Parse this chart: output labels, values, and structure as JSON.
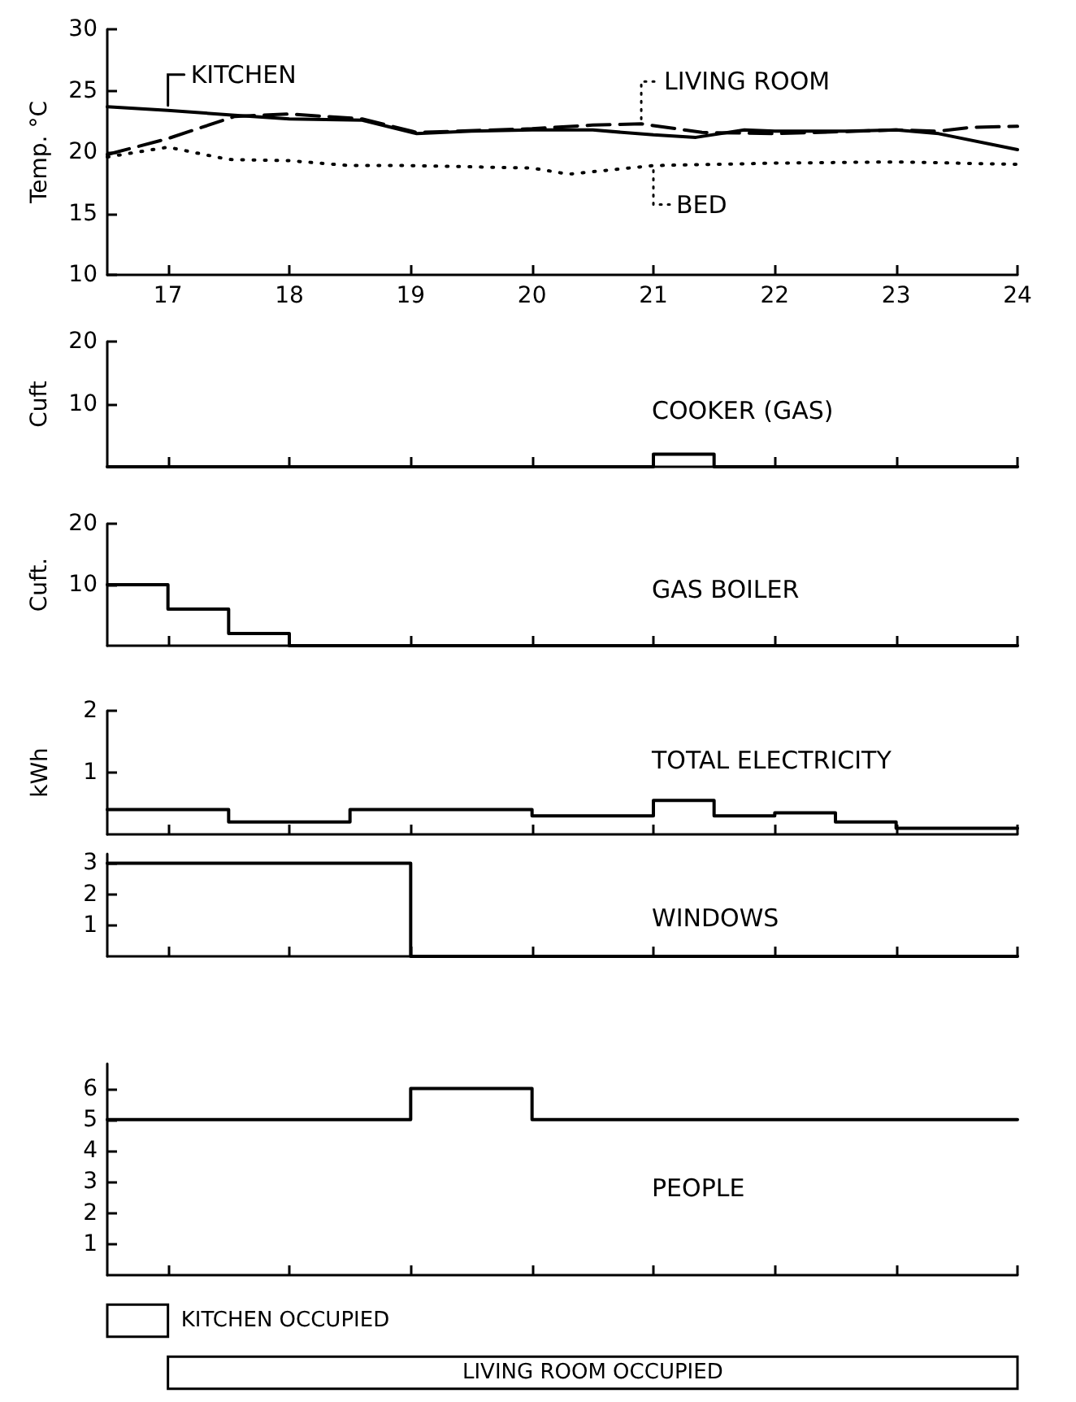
{
  "chart_data": [
    {
      "type": "line",
      "ylabel": "Temp. °C",
      "marker": "none",
      "legend": "top",
      "xlim": [
        16.5,
        24
      ],
      "xticks": [
        17,
        18,
        19,
        20,
        21,
        22,
        23,
        24
      ],
      "ylim": [
        10,
        30
      ],
      "yticks": [
        10,
        15,
        20,
        25,
        30
      ],
      "series": [
        {
          "name": "KITCHEN",
          "color": "#000000",
          "line_style": "solid",
          "x": [
            16.5,
            17,
            17.55,
            18,
            18.6,
            19.05,
            19.5,
            20,
            20.5,
            21,
            21.35,
            21.75,
            22,
            22.6,
            23,
            23.35,
            24
          ],
          "values": [
            23.7,
            23.4,
            23.0,
            22.7,
            22.6,
            21.5,
            21.7,
            21.8,
            21.8,
            21.4,
            21.2,
            21.8,
            21.7,
            21.7,
            21.8,
            21.5,
            20.2
          ]
        },
        {
          "name": "LIVING ROOM",
          "color": "#000000",
          "line_style": "dashed",
          "x": [
            16.5,
            17,
            17.55,
            18,
            18.6,
            19.05,
            20,
            20.5,
            20.9,
            21.4,
            22,
            23,
            23.35,
            23.6,
            24
          ],
          "values": [
            19.8,
            21.1,
            22.9,
            23.1,
            22.7,
            21.6,
            21.9,
            22.2,
            22.3,
            21.6,
            21.5,
            21.8,
            21.7,
            22.0,
            22.1
          ]
        },
        {
          "name": "BED",
          "color": "#000000",
          "line_style": "dotted",
          "x": [
            16.5,
            17,
            17.5,
            18,
            18.5,
            19,
            20,
            20.3,
            21,
            22,
            23,
            24
          ],
          "values": [
            19.6,
            20.4,
            19.4,
            19.3,
            18.9,
            18.9,
            18.7,
            18.2,
            18.9,
            19.1,
            19.2,
            19.0
          ]
        }
      ]
    },
    {
      "type": "step",
      "title": "COOKER (GAS)",
      "ylabel": "Cuft",
      "color": "#000000",
      "x": [
        16.5,
        21,
        21.5,
        24
      ],
      "values": [
        0,
        2,
        0,
        0
      ],
      "xlim": [
        16.5,
        24
      ],
      "xticks": [
        17,
        18,
        19,
        20,
        21,
        22,
        23,
        24
      ],
      "ylim": [
        0,
        20
      ],
      "yticks": [
        10,
        20
      ],
      "tick_labels": "y"
    },
    {
      "type": "step",
      "title": "GAS BOILER",
      "ylabel": "Cuft.",
      "color": "#000000",
      "x": [
        16.5,
        17,
        17.5,
        18,
        24
      ],
      "values": [
        10,
        6,
        2,
        0,
        0
      ],
      "xlim": [
        16.5,
        24
      ],
      "xticks": [
        17,
        18,
        19,
        20,
        21,
        22,
        23,
        24
      ],
      "ylim": [
        0,
        20
      ],
      "yticks": [
        10,
        20
      ],
      "tick_labels": "y"
    },
    {
      "type": "step",
      "title": "TOTAL ELECTRICITY",
      "ylabel": "kWh",
      "color": "#000000",
      "x": [
        16.5,
        17.5,
        18.5,
        20,
        21,
        21.5,
        22,
        22.5,
        23,
        24
      ],
      "values": [
        0.4,
        0.2,
        0.4,
        0.3,
        0.55,
        0.3,
        0.35,
        0.2,
        0.1,
        0.1
      ],
      "xlim": [
        16.5,
        24
      ],
      "xticks": [
        17,
        18,
        19,
        20,
        21,
        22,
        23,
        24
      ],
      "ylim": [
        0,
        2
      ],
      "yticks": [
        1,
        2
      ],
      "tick_labels": "y"
    },
    {
      "type": "step",
      "title": "WINDOWS",
      "color": "#000000",
      "x": [
        16.5,
        17,
        18,
        19,
        24
      ],
      "values": [
        3,
        3,
        3,
        0,
        0
      ],
      "xlim": [
        16.5,
        24
      ],
      "xticks": [
        17,
        18,
        19,
        20,
        21,
        22,
        23,
        24
      ],
      "ylim": [
        0,
        3.3
      ],
      "yticks": [
        1,
        2,
        3
      ],
      "tick_labels": "y"
    },
    {
      "type": "step",
      "title": "PEOPLE",
      "color": "#000000",
      "x": [
        16.5,
        19,
        20,
        24
      ],
      "values": [
        5,
        6,
        5,
        5
      ],
      "xlim": [
        16.5,
        24
      ],
      "xticks": [
        17,
        18,
        19,
        20,
        21,
        22,
        23,
        24
      ],
      "ylim": [
        0,
        6.8
      ],
      "yticks": [
        1,
        2,
        3,
        4,
        5,
        6
      ],
      "tick_labels": "y"
    },
    {
      "type": "bar",
      "orientation": "horizontal",
      "categories": [
        "KITCHEN OCCUPIED",
        "LIVING ROOM OCCUPIED"
      ],
      "base": [
        16.5,
        17
      ],
      "values": [
        0.5,
        7
      ],
      "color": "#ffffff",
      "xlim": [
        16.5,
        24
      ],
      "tick_labels": false
    }
  ]
}
